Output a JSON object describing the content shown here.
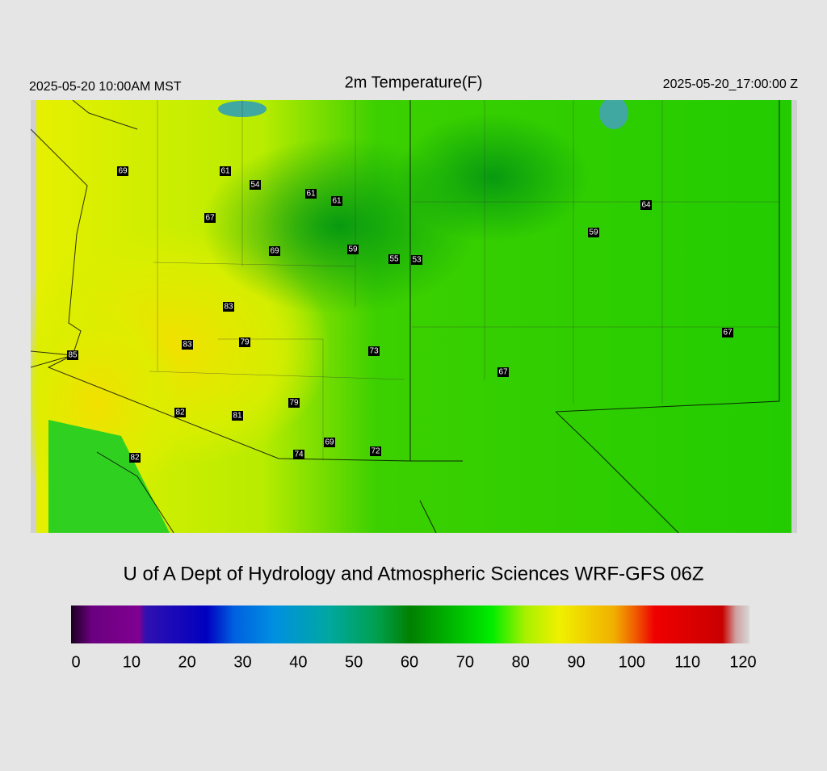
{
  "header": {
    "local_time": "2025-05-20 10:00AM MST",
    "title": "2m Temperature(F)",
    "valid_time": "2025-05-20_17:00:00 Z"
  },
  "stations": [
    69,
    61,
    54,
    61,
    61,
    67,
    69,
    59,
    55,
    53,
    83,
    83,
    79,
    85,
    73,
    67,
    59,
    64,
    67,
    82,
    81,
    79,
    69,
    74,
    72,
    82
  ],
  "credit": "U of A Dept of Hydrology and Atmospheric Sciences WRF-GFS 06Z",
  "colorbar": {
    "ticks": [
      0,
      10,
      20,
      30,
      40,
      50,
      60,
      70,
      80,
      90,
      100,
      110,
      120
    ]
  }
}
